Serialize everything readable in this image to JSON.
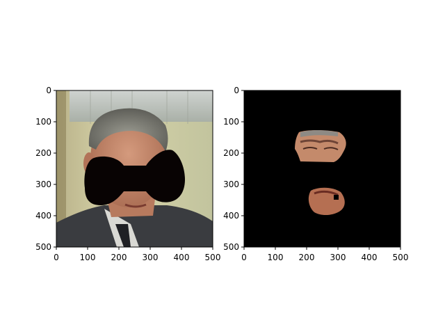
{
  "chart_data": [
    {
      "type": "image",
      "title": "",
      "xlabel": "",
      "ylabel": "",
      "xlim": [
        0,
        500
      ],
      "ylim": [
        500,
        0
      ],
      "xticks": [
        0,
        100,
        200,
        300,
        400,
        500
      ],
      "yticks": [
        0,
        100,
        200,
        300,
        400,
        500
      ],
      "content": "photo of a man's face with a black bow-tie shaped mask over the eyes and mouth"
    },
    {
      "type": "image",
      "title": "",
      "xlabel": "",
      "ylabel": "",
      "xlim": [
        0,
        500
      ],
      "ylim": [
        500,
        0
      ],
      "xticks": [
        0,
        100,
        200,
        300,
        400,
        500
      ],
      "yticks": [
        0,
        100,
        200,
        300,
        400,
        500
      ],
      "content": "black background showing only the masked eye and mouth regions of the face"
    }
  ],
  "colors": {
    "background": "#ffffff",
    "mask": "#080303",
    "masked_bg": "#000000",
    "skin": "#c98d6e",
    "suit": "#3a3c40",
    "wall": "#c9c59a"
  }
}
